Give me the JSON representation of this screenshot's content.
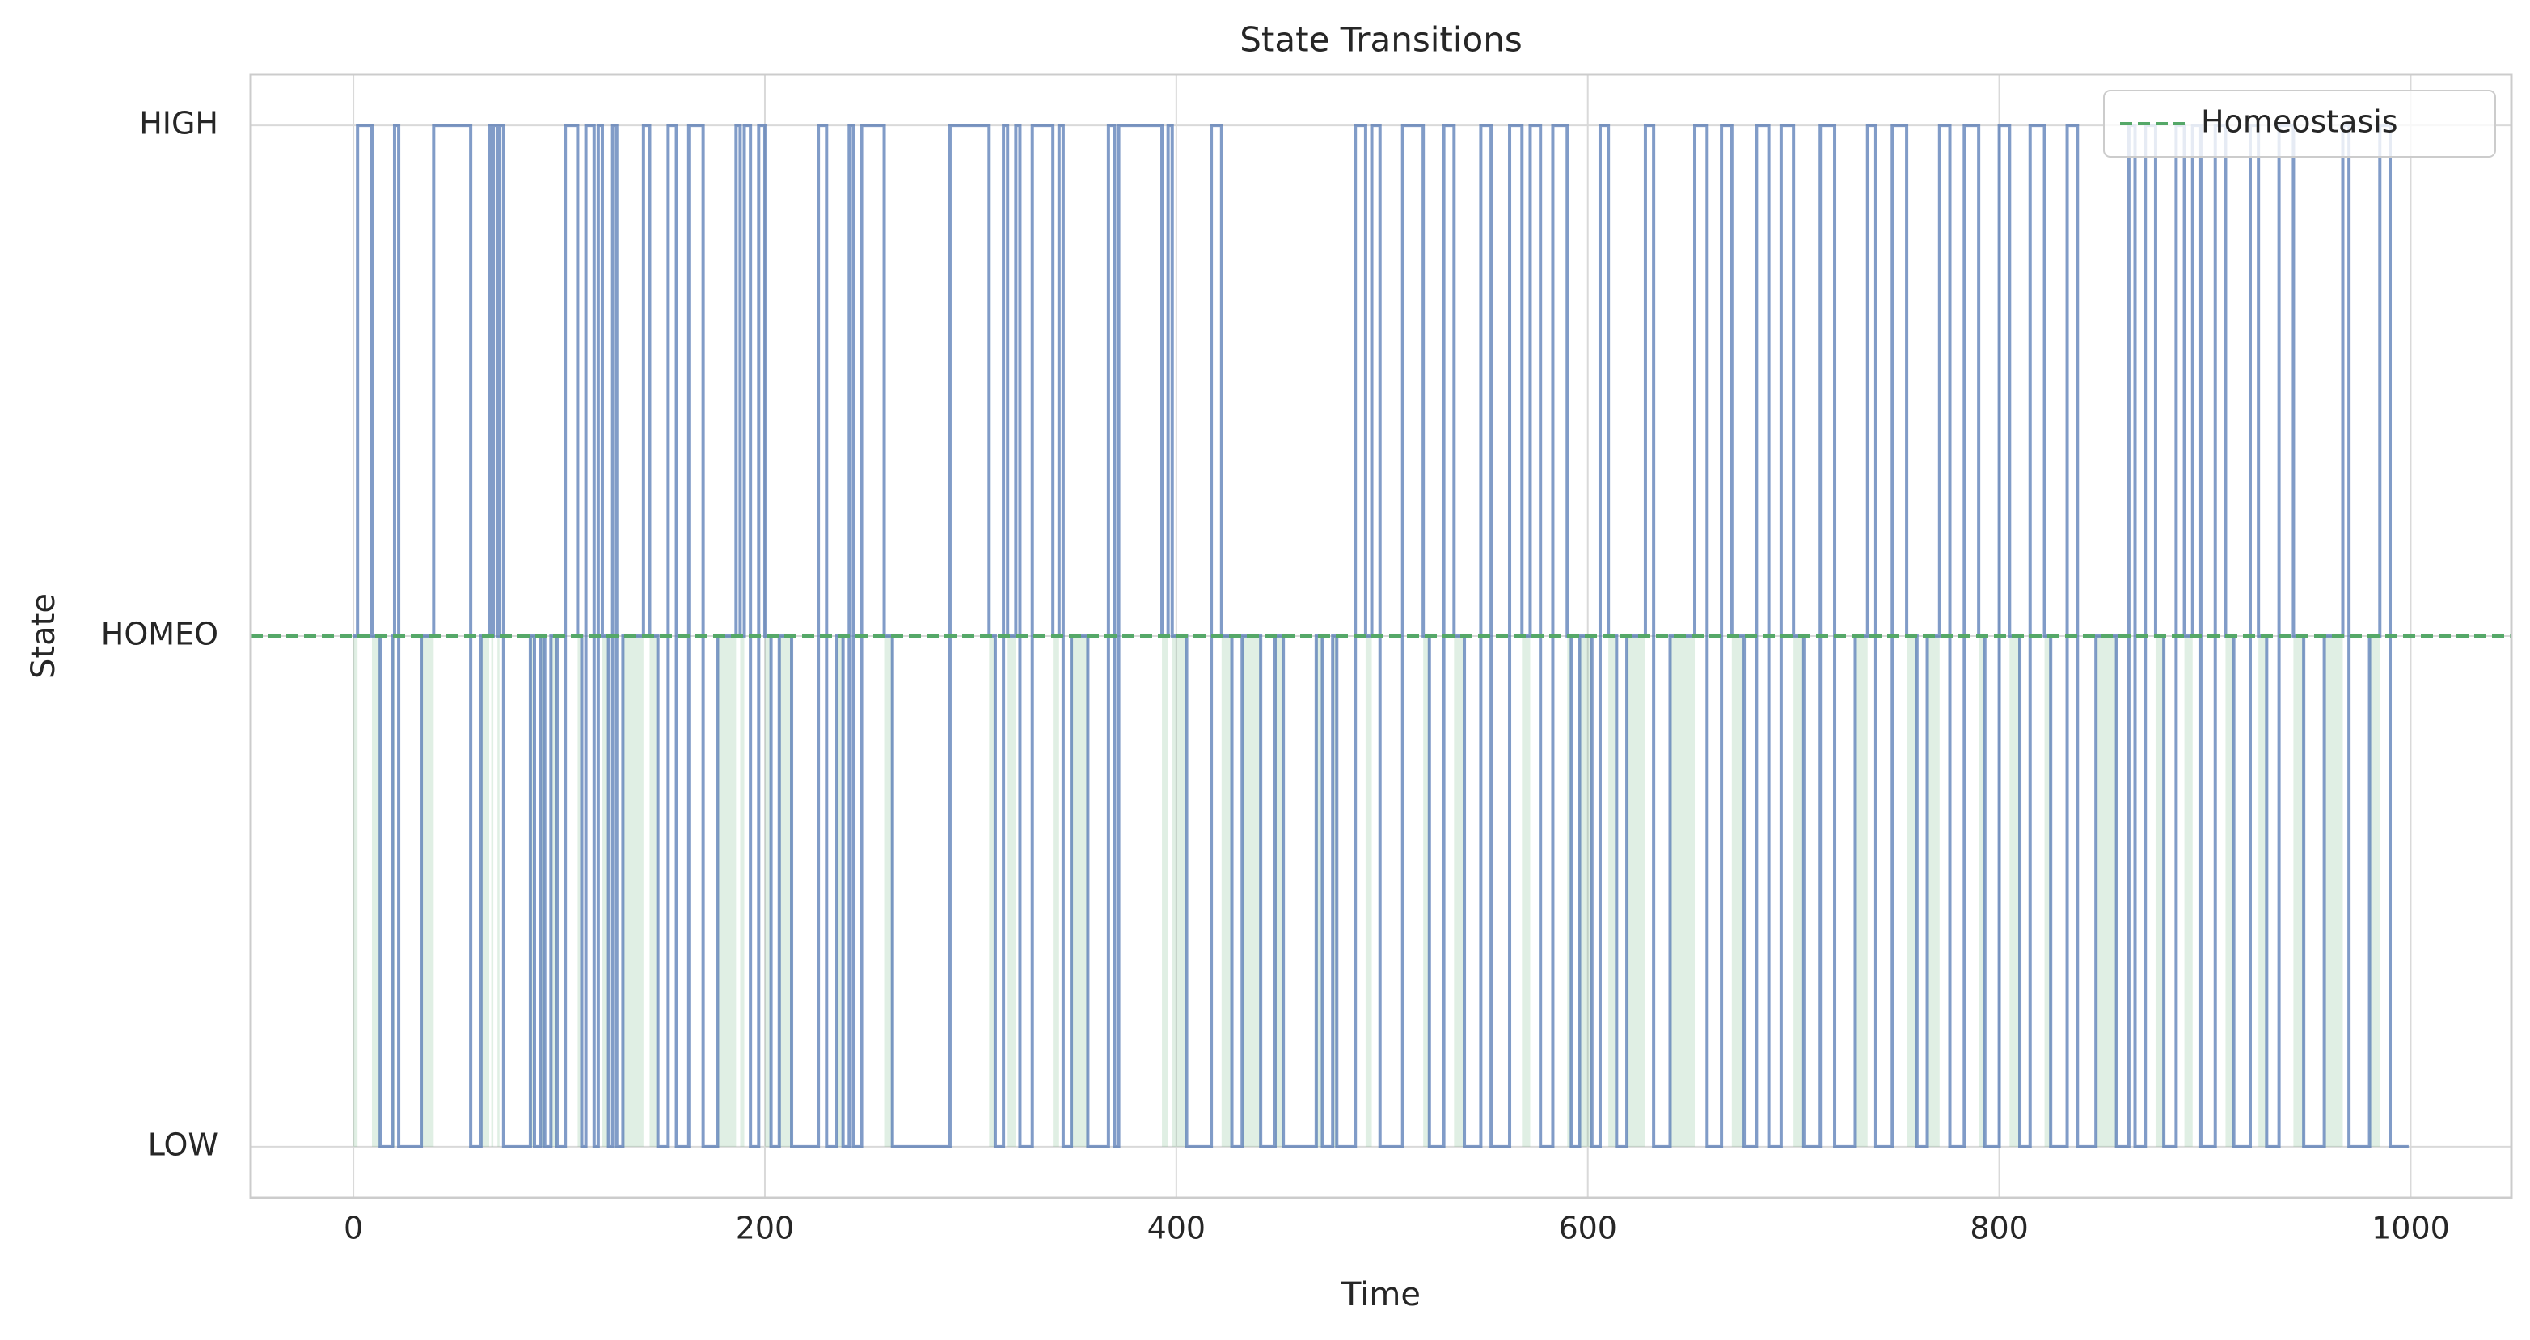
{
  "chart_data": {
    "type": "step",
    "title": "State Transitions",
    "x_label": "Time",
    "y_label": "State",
    "x": [
      0,
      2,
      9,
      13,
      19,
      20,
      22,
      33,
      39,
      57,
      62,
      66,
      67,
      68,
      70,
      71,
      73,
      86,
      88,
      91,
      93,
      96,
      99,
      103,
      109,
      111,
      113,
      117,
      119,
      121,
      124,
      126,
      128,
      131,
      141,
      144,
      148,
      153,
      157,
      163,
      170,
      177,
      186,
      188,
      190,
      193,
      197,
      200,
      203,
      207,
      213,
      226,
      230,
      235,
      238,
      241,
      243,
      247,
      258,
      262,
      290,
      309,
      312,
      316,
      318,
      322,
      324,
      330,
      340,
      343,
      345,
      349,
      357,
      367,
      370,
      372,
      393,
      396,
      398,
      405,
      417,
      422,
      427,
      432,
      441,
      448,
      452,
      468,
      471,
      476,
      478,
      487,
      492,
      495,
      499,
      510,
      520,
      523,
      530,
      535,
      540,
      548,
      553,
      562,
      568,
      572,
      577,
      583,
      590,
      592,
      596,
      602,
      606,
      610,
      614,
      619,
      628,
      632,
      640,
      652,
      658,
      665,
      670,
      676,
      682,
      688,
      694,
      700,
      705,
      713,
      720,
      730,
      736,
      740,
      748,
      755,
      760,
      765,
      771,
      776,
      783,
      790,
      793,
      800,
      805,
      810,
      815,
      822,
      825,
      833,
      838,
      847,
      857,
      863,
      866,
      871,
      876,
      880,
      886,
      890,
      894,
      898,
      905,
      910,
      914,
      922,
      926,
      930,
      936,
      943,
      948,
      958,
      967,
      970,
      980,
      985,
      990,
      999
    ],
    "series": [
      {
        "color": "#4c72b0",
        "values": [
          1,
          2,
          1,
          0,
          1,
          2,
          0,
          1,
          2,
          0,
          1,
          2,
          1,
          2,
          1,
          2,
          0,
          1,
          0,
          1,
          0,
          1,
          0,
          2,
          1,
          0,
          2,
          0,
          2,
          1,
          0,
          2,
          0,
          1,
          2,
          1,
          0,
          2,
          0,
          2,
          0,
          1,
          2,
          1,
          2,
          0,
          2,
          1,
          0,
          1,
          0,
          2,
          0,
          1,
          0,
          2,
          0,
          2,
          1,
          0,
          2,
          1,
          0,
          2,
          1,
          2,
          0,
          2,
          1,
          2,
          0,
          1,
          0,
          2,
          0,
          2,
          1,
          2,
          1,
          0,
          2,
          1,
          0,
          1,
          0,
          1,
          0,
          1,
          0,
          1,
          0,
          2,
          1,
          2,
          0,
          2,
          1,
          0,
          2,
          1,
          0,
          2,
          0,
          2,
          1,
          2,
          0,
          2,
          1,
          0,
          1,
          0,
          2,
          1,
          0,
          1,
          2,
          0,
          1,
          2,
          0,
          2,
          1,
          0,
          2,
          0,
          2,
          1,
          0,
          2,
          0,
          1,
          2,
          0,
          2,
          1,
          0,
          1,
          2,
          0,
          2,
          1,
          0,
          2,
          1,
          0,
          2,
          1,
          0,
          2,
          0,
          1,
          0,
          2,
          0,
          2,
          1,
          0,
          2,
          1,
          2,
          0,
          2,
          1,
          0,
          2,
          1,
          0,
          2,
          1,
          0,
          1,
          2,
          0,
          1,
          2,
          0,
          0
        ]
      }
    ],
    "hlines": [
      {
        "name": "Homeostasis",
        "value": 1,
        "color": "#55a868"
      }
    ],
    "xlim": [
      -49.95,
      1048.95
    ],
    "xticks": [
      0,
      200,
      400,
      600,
      800,
      1000
    ],
    "ylim": [
      -0.1,
      2.1
    ],
    "yticks": [
      {
        "value": 0,
        "label": "LOW"
      },
      {
        "value": 1,
        "label": "HOMEO"
      },
      {
        "value": 2,
        "label": "HIGH"
      }
    ],
    "grid": true,
    "legend": "upper right"
  }
}
